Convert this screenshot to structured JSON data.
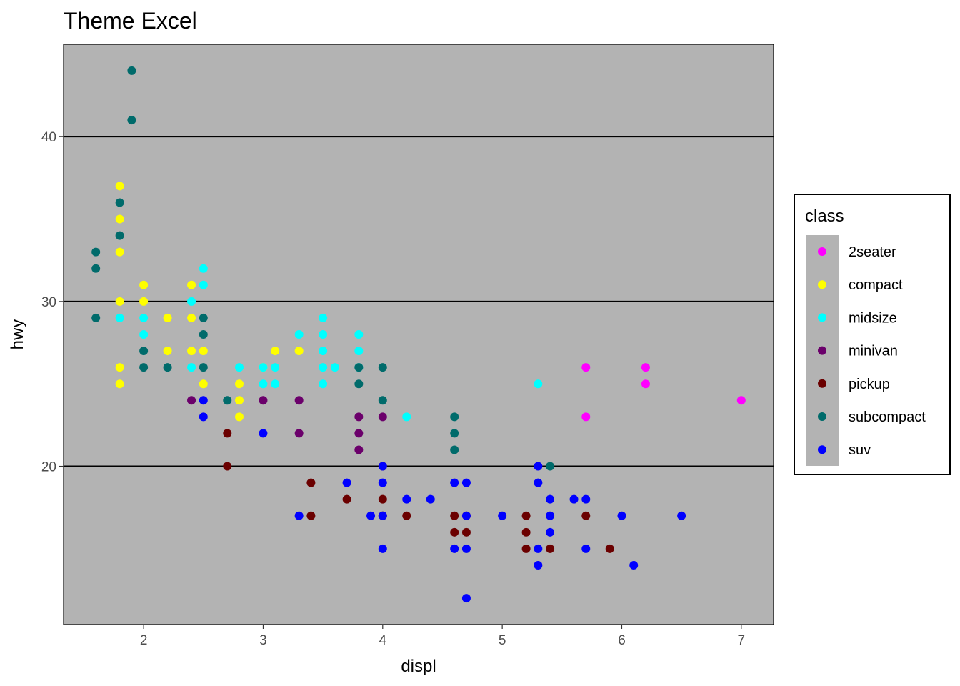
{
  "chart_data": {
    "type": "scatter",
    "title": "Theme Excel",
    "xlabel": "displ",
    "ylabel": "hwy",
    "xlim": [
      1.33,
      7.27
    ],
    "ylim": [
      10.4,
      45.6
    ],
    "x_ticks": [
      2,
      3,
      4,
      5,
      6,
      7
    ],
    "y_ticks": [
      20,
      30,
      40
    ],
    "grid": "horizontal major lines",
    "panel_background": "#b3b3b3",
    "legend": {
      "title": "class",
      "placement": "right",
      "entries": [
        {
          "name": "2seater",
          "color": "#ff00ff"
        },
        {
          "name": "compact",
          "color": "#ffff00"
        },
        {
          "name": "midsize",
          "color": "#00ffff"
        },
        {
          "name": "minivan",
          "color": "#6b006b"
        },
        {
          "name": "pickup",
          "color": "#6b0000"
        },
        {
          "name": "subcompact",
          "color": "#006b6b"
        },
        {
          "name": "suv",
          "color": "#0000ff"
        }
      ]
    },
    "series": [
      {
        "name": "2seater",
        "color": "#ff00ff",
        "points": [
          [
            5.7,
            26
          ],
          [
            5.7,
            23
          ],
          [
            6.2,
            26
          ],
          [
            6.2,
            25
          ],
          [
            7.0,
            24
          ]
        ]
      },
      {
        "name": "compact",
        "color": "#ffff00",
        "points": [
          [
            1.8,
            37
          ],
          [
            1.8,
            35
          ],
          [
            1.8,
            33
          ],
          [
            1.8,
            30
          ],
          [
            1.8,
            26
          ],
          [
            1.8,
            25
          ],
          [
            2.0,
            31
          ],
          [
            2.0,
            30
          ],
          [
            2.2,
            29
          ],
          [
            2.2,
            27
          ],
          [
            2.4,
            31
          ],
          [
            2.4,
            29
          ],
          [
            2.4,
            27
          ],
          [
            2.5,
            27
          ],
          [
            2.5,
            25
          ],
          [
            2.8,
            25
          ],
          [
            2.8,
            24
          ],
          [
            2.8,
            23
          ],
          [
            3.0,
            26
          ],
          [
            3.1,
            27
          ],
          [
            3.3,
            27
          ]
        ]
      },
      {
        "name": "midsize",
        "color": "#00ffff",
        "points": [
          [
            1.8,
            29
          ],
          [
            2.0,
            29
          ],
          [
            2.0,
            28
          ],
          [
            2.4,
            30
          ],
          [
            2.4,
            26
          ],
          [
            2.5,
            32
          ],
          [
            2.5,
            31
          ],
          [
            2.8,
            26
          ],
          [
            3.0,
            26
          ],
          [
            3.0,
            25
          ],
          [
            3.1,
            26
          ],
          [
            3.1,
            25
          ],
          [
            3.3,
            28
          ],
          [
            3.5,
            29
          ],
          [
            3.5,
            28
          ],
          [
            3.5,
            27
          ],
          [
            3.5,
            26
          ],
          [
            3.5,
            25
          ],
          [
            3.6,
            26
          ],
          [
            3.8,
            28
          ],
          [
            3.8,
            27
          ],
          [
            3.8,
            26
          ],
          [
            4.2,
            23
          ],
          [
            5.3,
            25
          ]
        ]
      },
      {
        "name": "minivan",
        "color": "#6b006b",
        "points": [
          [
            2.4,
            24
          ],
          [
            3.0,
            24
          ],
          [
            3.3,
            24
          ],
          [
            3.3,
            22
          ],
          [
            3.8,
            23
          ],
          [
            3.8,
            22
          ],
          [
            3.8,
            21
          ],
          [
            4.0,
            23
          ]
        ]
      },
      {
        "name": "pickup",
        "color": "#6b0000",
        "points": [
          [
            2.7,
            22
          ],
          [
            2.7,
            20
          ],
          [
            3.4,
            19
          ],
          [
            3.4,
            17
          ],
          [
            3.7,
            18
          ],
          [
            4.0,
            20
          ],
          [
            4.0,
            18
          ],
          [
            4.0,
            17
          ],
          [
            4.2,
            17
          ],
          [
            4.6,
            17
          ],
          [
            4.6,
            16
          ],
          [
            4.7,
            17
          ],
          [
            4.7,
            16
          ],
          [
            5.2,
            17
          ],
          [
            5.2,
            16
          ],
          [
            5.2,
            15
          ],
          [
            5.4,
            15
          ],
          [
            5.7,
            17
          ],
          [
            5.9,
            15
          ]
        ]
      },
      {
        "name": "subcompact",
        "color": "#006b6b",
        "points": [
          [
            1.6,
            33
          ],
          [
            1.6,
            32
          ],
          [
            1.6,
            29
          ],
          [
            1.8,
            36
          ],
          [
            1.8,
            34
          ],
          [
            1.9,
            44
          ],
          [
            1.9,
            41
          ],
          [
            2.0,
            27
          ],
          [
            2.0,
            26
          ],
          [
            2.2,
            26
          ],
          [
            2.5,
            29
          ],
          [
            2.5,
            28
          ],
          [
            2.5,
            26
          ],
          [
            2.7,
            24
          ],
          [
            3.8,
            26
          ],
          [
            3.8,
            25
          ],
          [
            4.0,
            26
          ],
          [
            4.0,
            24
          ],
          [
            4.6,
            23
          ],
          [
            4.6,
            22
          ],
          [
            4.6,
            21
          ],
          [
            5.4,
            20
          ]
        ]
      },
      {
        "name": "suv",
        "color": "#0000ff",
        "points": [
          [
            2.5,
            24
          ],
          [
            2.5,
            23
          ],
          [
            3.0,
            22
          ],
          [
            3.3,
            17
          ],
          [
            3.7,
            19
          ],
          [
            3.9,
            17
          ],
          [
            4.0,
            20
          ],
          [
            4.0,
            19
          ],
          [
            4.0,
            17
          ],
          [
            4.0,
            15
          ],
          [
            4.2,
            18
          ],
          [
            4.4,
            18
          ],
          [
            4.6,
            19
          ],
          [
            4.6,
            15
          ],
          [
            4.7,
            19
          ],
          [
            4.7,
            17
          ],
          [
            4.7,
            15
          ],
          [
            4.7,
            12
          ],
          [
            5.0,
            17
          ],
          [
            5.3,
            20
          ],
          [
            5.3,
            19
          ],
          [
            5.3,
            15
          ],
          [
            5.3,
            14
          ],
          [
            5.4,
            18
          ],
          [
            5.4,
            17
          ],
          [
            5.4,
            16
          ],
          [
            5.6,
            18
          ],
          [
            5.7,
            18
          ],
          [
            5.7,
            15
          ],
          [
            6.0,
            17
          ],
          [
            6.1,
            14
          ],
          [
            6.5,
            17
          ]
        ]
      }
    ]
  }
}
